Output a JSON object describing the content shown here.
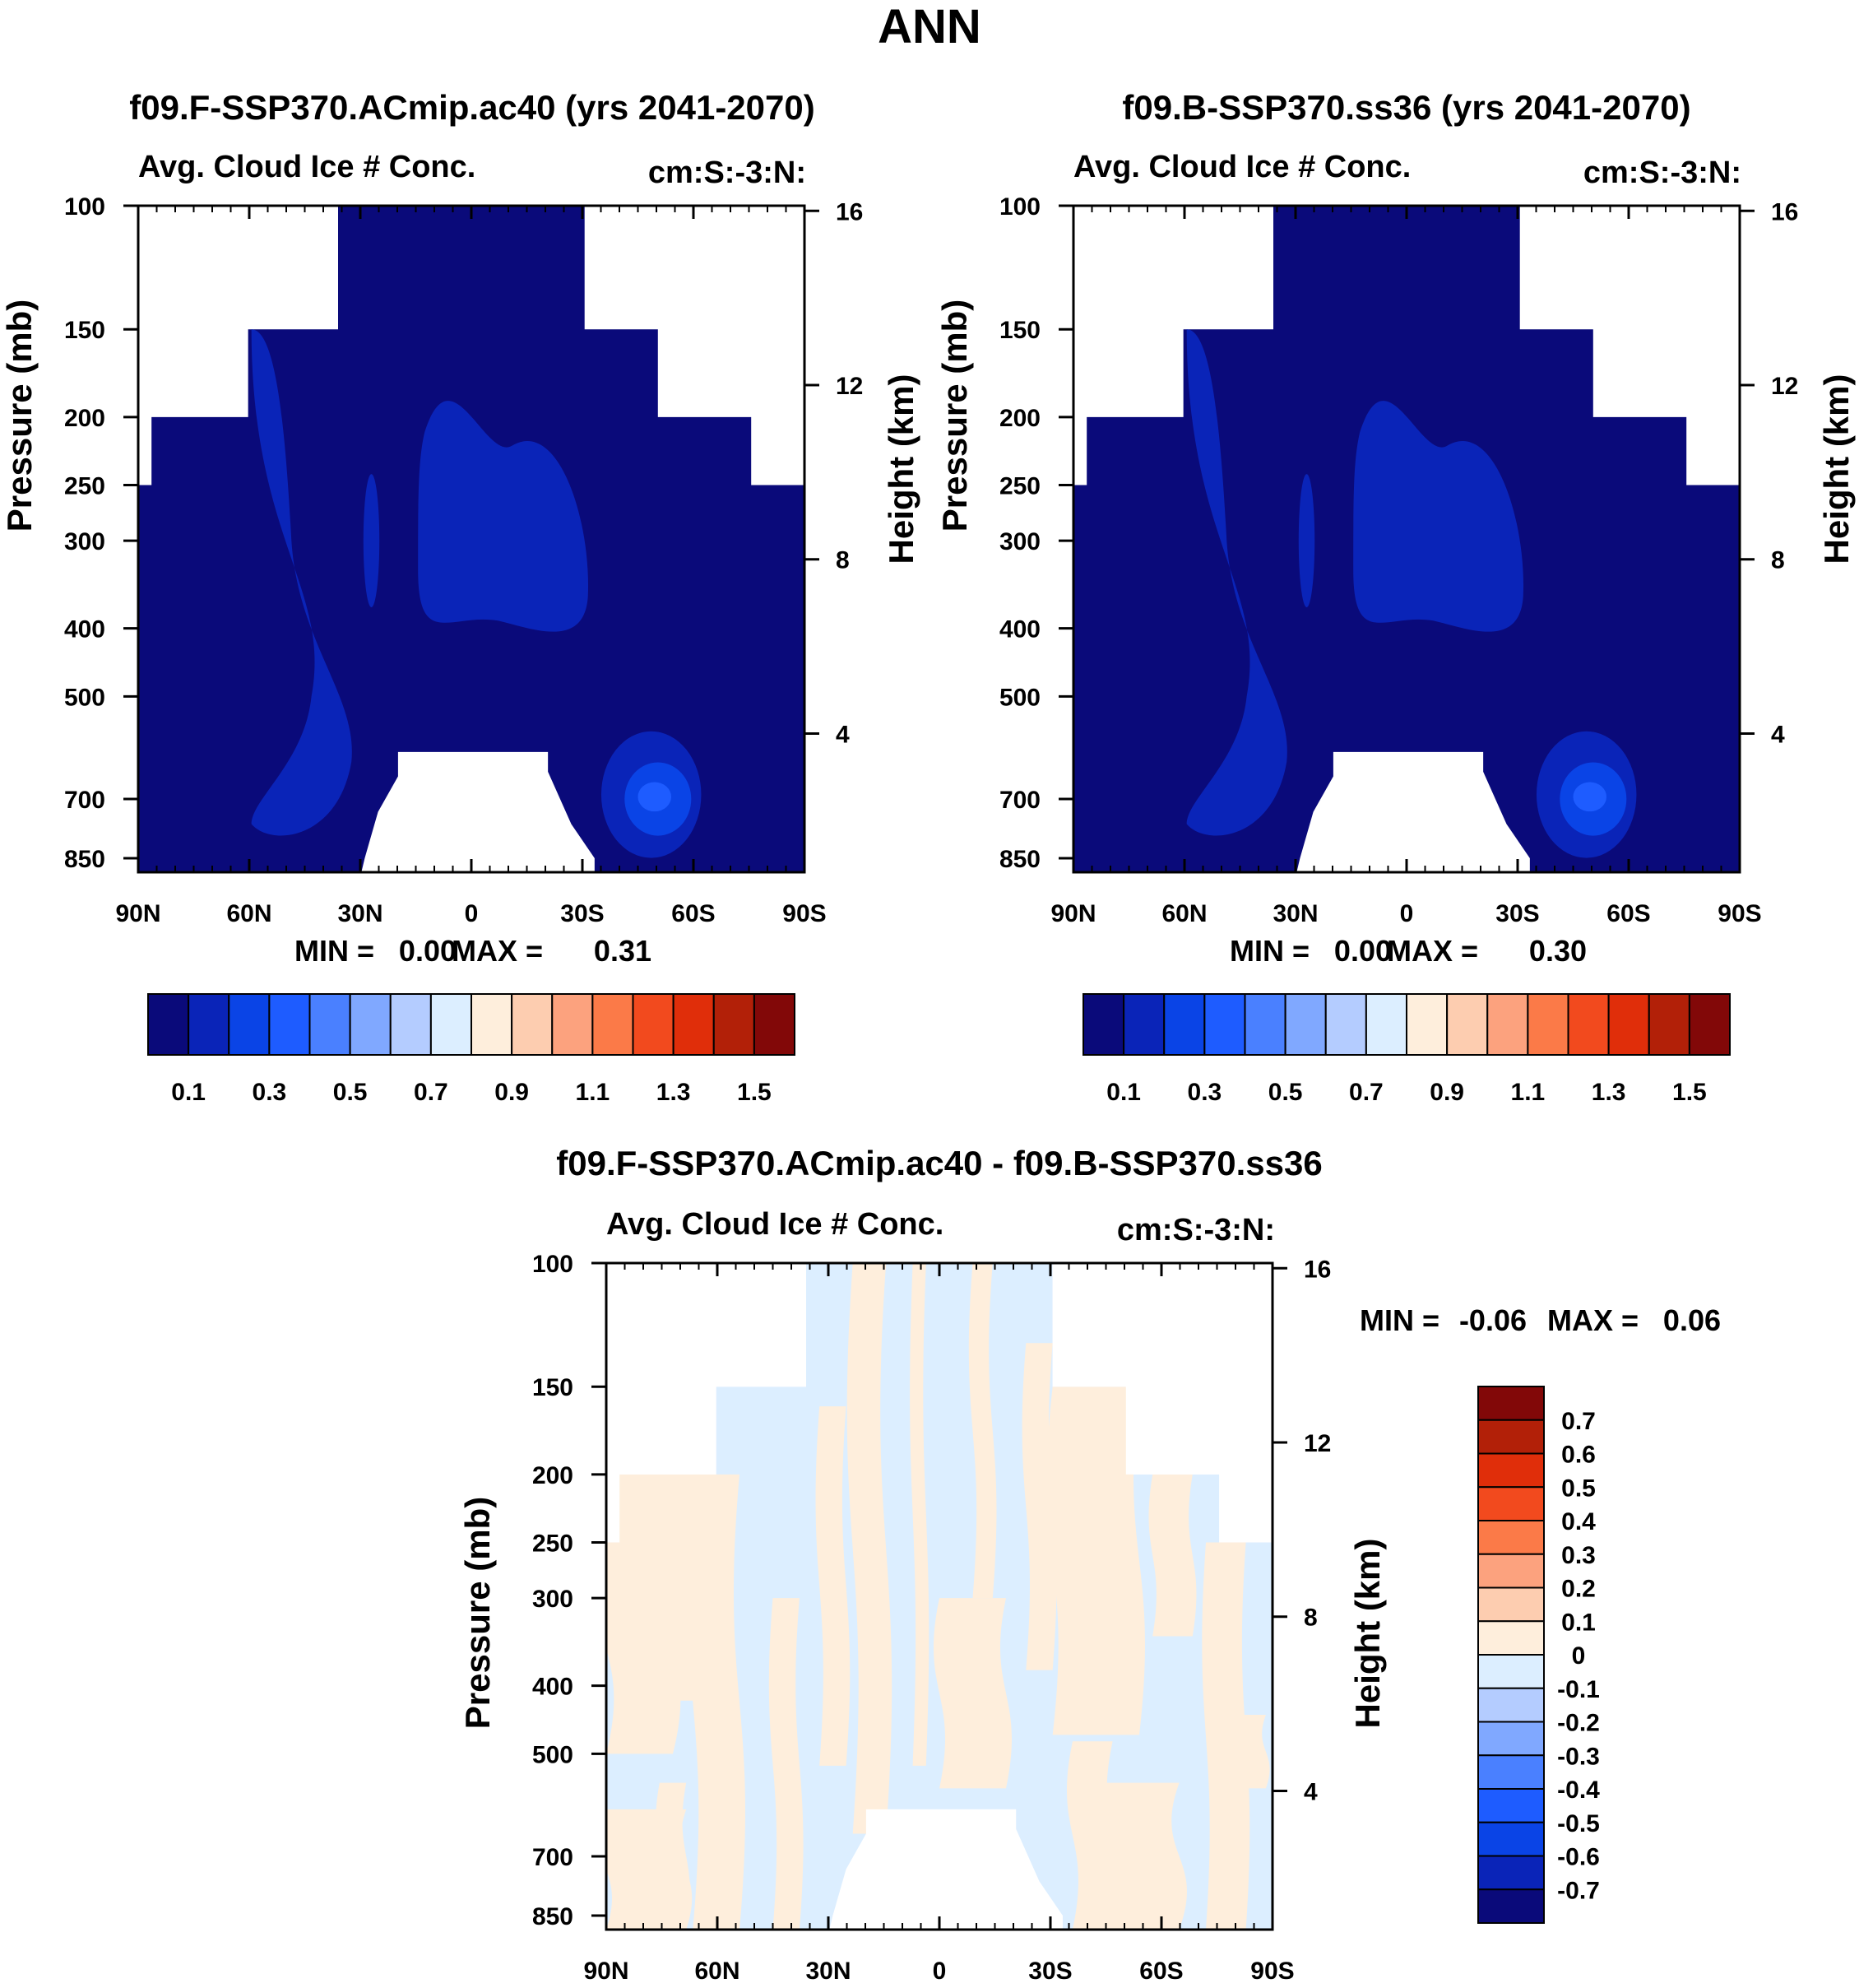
{
  "figure_title": "ANN",
  "chart_data": [
    {
      "type": "heatmap",
      "title": "f09.F-SSP370.ACmip.ac40 (yrs 2041-2070)",
      "left_title": "Avg. Cloud Ice # Conc.",
      "right_title": "cm:S:-3:N:",
      "ylabel": "Pressure (mb)",
      "ylabel_right": "Height (km)",
      "x_ticks": [
        "90N",
        "60N",
        "30N",
        "0",
        "30S",
        "60S",
        "90S"
      ],
      "y_ticks": [
        "100",
        "150",
        "200",
        "250",
        "300",
        "400",
        "500",
        "700",
        "850"
      ],
      "y_ticks_right": [
        "16",
        "12",
        "8",
        "4"
      ],
      "stats": {
        "min_label": "MIN =",
        "min": "0.00",
        "max_label": "MAX =",
        "max": "0.31"
      },
      "colorbar": {
        "orientation": "horizontal",
        "labels": [
          "0.1",
          "0.3",
          "0.5",
          "0.7",
          "0.9",
          "1.1",
          "1.3",
          "1.5"
        ],
        "colors": [
          "#0a0a7a",
          "#0a24b8",
          "#0a44e6",
          "#1e5cff",
          "#4a80ff",
          "#80a8ff",
          "#b4ccff",
          "#dceeff",
          "#feeedc",
          "#fdcdb0",
          "#fca27e",
          "#fb7a48",
          "#f24a1e",
          "#e02e0a",
          "#b22008",
          "#820808"
        ]
      },
      "field": {
        "background": "#0a0a7a",
        "light_pockets": "#0a24b8",
        "core": "#1e5cff"
      }
    },
    {
      "type": "heatmap",
      "title": "f09.B-SSP370.ss36 (yrs 2041-2070)",
      "left_title": "Avg. Cloud Ice # Conc.",
      "right_title": "cm:S:-3:N:",
      "ylabel": "Pressure (mb)",
      "ylabel_right": "Height (km)",
      "x_ticks": [
        "90N",
        "60N",
        "30N",
        "0",
        "30S",
        "60S",
        "90S"
      ],
      "y_ticks": [
        "100",
        "150",
        "200",
        "250",
        "300",
        "400",
        "500",
        "700",
        "850"
      ],
      "y_ticks_right": [
        "16",
        "12",
        "8",
        "4"
      ],
      "stats": {
        "min_label": "MIN =",
        "min": "0.00",
        "max_label": "MAX =",
        "max": "0.30"
      },
      "colorbar": {
        "orientation": "horizontal",
        "labels": [
          "0.1",
          "0.3",
          "0.5",
          "0.7",
          "0.9",
          "1.1",
          "1.3",
          "1.5"
        ],
        "colors": [
          "#0a0a7a",
          "#0a24b8",
          "#0a44e6",
          "#1e5cff",
          "#4a80ff",
          "#80a8ff",
          "#b4ccff",
          "#dceeff",
          "#feeedc",
          "#fdcdb0",
          "#fca27e",
          "#fb7a48",
          "#f24a1e",
          "#e02e0a",
          "#b22008",
          "#820808"
        ]
      },
      "field": {
        "background": "#0a0a7a",
        "light_pockets": "#0a24b8",
        "core": "#1e5cff"
      }
    },
    {
      "type": "heatmap",
      "title": "f09.F-SSP370.ACmip.ac40 - f09.B-SSP370.ss36",
      "left_title": "Avg. Cloud Ice # Conc.",
      "right_title": "cm:S:-3:N:",
      "ylabel": "Pressure (mb)",
      "ylabel_right": "Height (km)",
      "x_ticks": [
        "90N",
        "60N",
        "30N",
        "0",
        "30S",
        "60S",
        "90S"
      ],
      "y_ticks": [
        "100",
        "150",
        "200",
        "250",
        "300",
        "400",
        "500",
        "700",
        "850"
      ],
      "y_ticks_right": [
        "16",
        "12",
        "8",
        "4"
      ],
      "stats": {
        "min_label": "MIN =",
        "min": "-0.06",
        "max_label": "MAX =",
        "max": "0.06"
      },
      "colorbar": {
        "orientation": "vertical",
        "labels": [
          "0.7",
          "0.6",
          "0.5",
          "0.4",
          "0.3",
          "0.2",
          "0.1",
          "0",
          "-0.1",
          "-0.2",
          "-0.3",
          "-0.4",
          "-0.5",
          "-0.6",
          "-0.7"
        ],
        "colors": [
          "#820808",
          "#b22008",
          "#e02e0a",
          "#f24a1e",
          "#fb7a48",
          "#fca27e",
          "#fdcdb0",
          "#feeedc",
          "#dceeff",
          "#b4ccff",
          "#80a8ff",
          "#4a80ff",
          "#1e5cff",
          "#0a44e6",
          "#0a24b8",
          "#0a0a7a"
        ]
      },
      "field": {
        "background": "#dceeff",
        "positive": "#feeedc"
      }
    }
  ]
}
